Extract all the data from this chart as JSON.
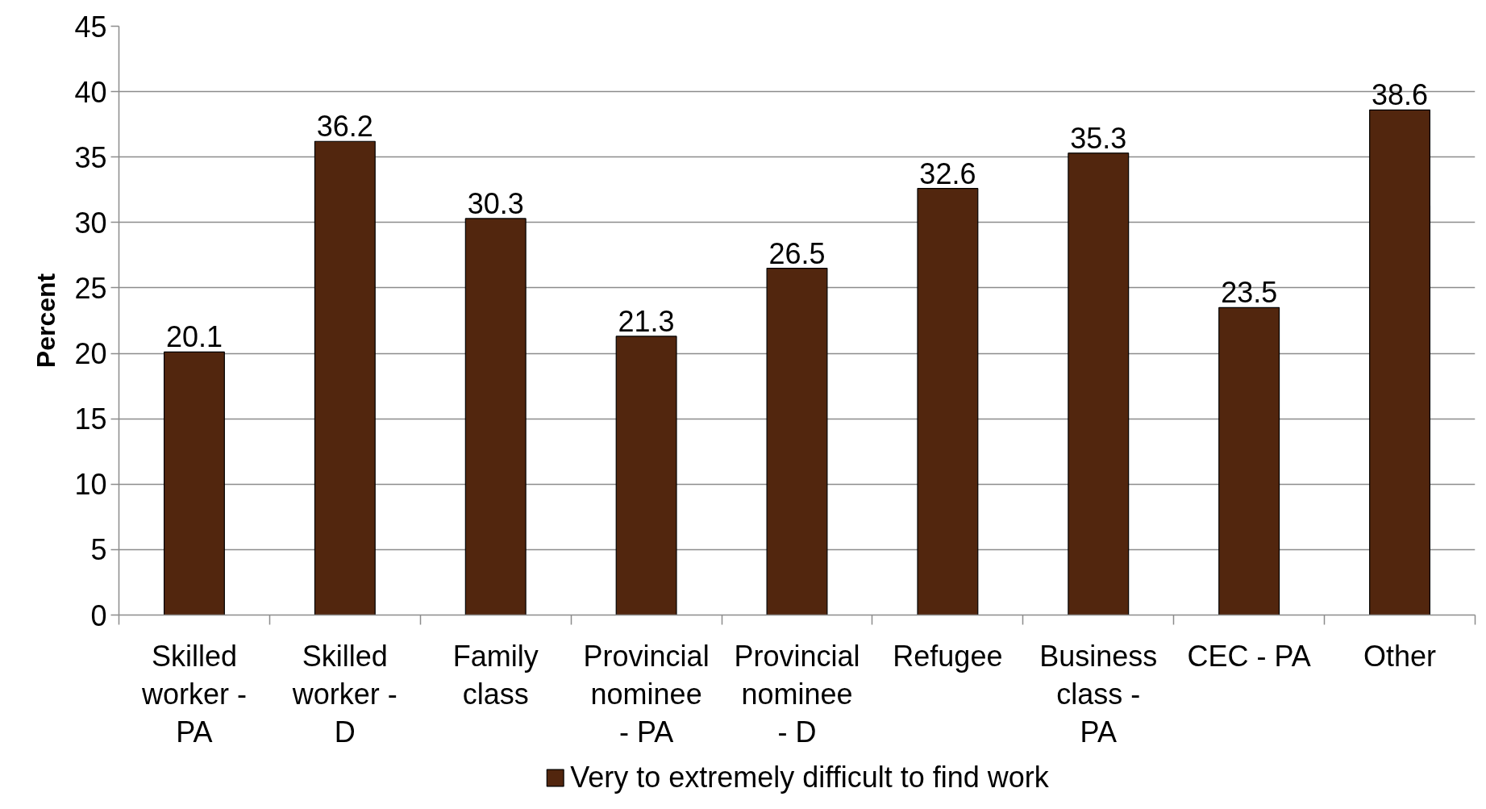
{
  "chart_data": {
    "type": "bar",
    "ylabel": "Percent",
    "categories": [
      "Skilled worker - PA",
      "Skilled worker - D",
      "Family class",
      "Provincial nominee - PA",
      "Provincial nominee - D",
      "Refugee",
      "Business class - PA",
      "CEC - PA",
      "Other"
    ],
    "series": [
      {
        "name": "Very to extremely difficult to find work",
        "color": "#52260e",
        "values": [
          20.1,
          36.2,
          30.3,
          21.3,
          26.5,
          32.6,
          35.3,
          23.5,
          38.6
        ]
      }
    ],
    "ylim": [
      0,
      45
    ],
    "yticks": [
      0,
      5,
      10,
      15,
      20,
      25,
      30,
      35,
      40,
      45
    ],
    "grid": "y",
    "legend": "bottom",
    "data_labels": true
  }
}
